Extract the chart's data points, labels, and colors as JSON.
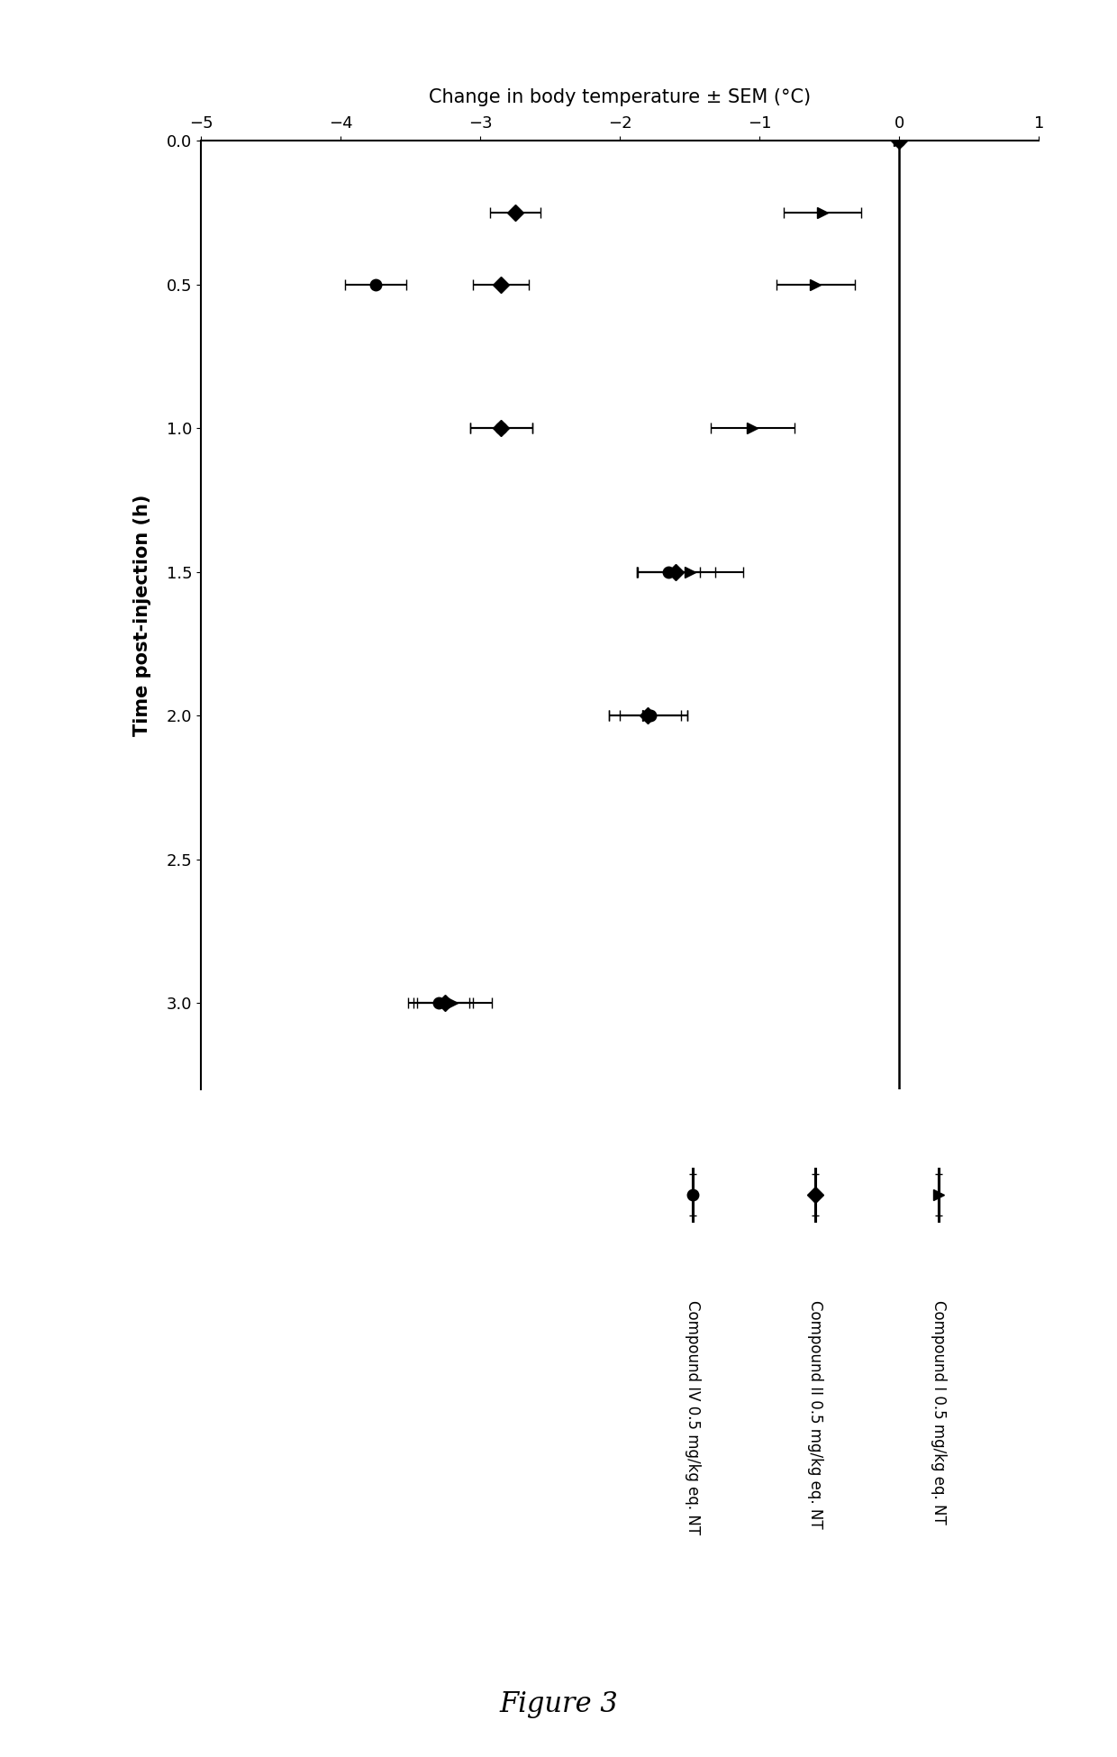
{
  "title": "Change in body temperature ± SEM (°C)",
  "ylabel": "Time post-injection (h)",
  "figure_label": "Figure 3",
  "xlim": [
    -5,
    1
  ],
  "ylim_top": 0,
  "ylim_bottom": 3.3,
  "xticks": [
    -5,
    -4,
    -3,
    -2,
    -1,
    0,
    1
  ],
  "yticks": [
    0,
    0.5,
    1.0,
    1.5,
    2.0,
    2.5,
    3.0
  ],
  "compound1": {
    "label": "Compound I 0.5 mg/kg eq. NT",
    "marker": ">",
    "time": [
      0,
      0.25,
      0.5,
      1.0,
      1.5,
      2.0,
      3.0
    ],
    "temp": [
      0,
      -0.55,
      -0.6,
      -1.05,
      -1.5,
      -1.8,
      -3.2
    ],
    "xerr": [
      0,
      0.28,
      0.28,
      0.3,
      0.38,
      0.28,
      0.28
    ]
  },
  "compound2": {
    "label": "Compound II 0.5 mg/kg eq. NT",
    "marker": "D",
    "time": [
      0,
      0.25,
      0.5,
      1.0,
      1.5,
      2.0,
      3.0
    ],
    "temp": [
      0,
      -2.75,
      -2.85,
      -2.85,
      -1.6,
      -1.8,
      -3.25
    ],
    "xerr": [
      0,
      0.18,
      0.2,
      0.22,
      0.28,
      0.28,
      0.2
    ]
  },
  "compound4": {
    "label": "Compound IV 0.5 mg/kg eq. NT",
    "marker": "o",
    "time": [
      0,
      0.5,
      1.0,
      1.5,
      2.0,
      3.0
    ],
    "temp": [
      0,
      -3.75,
      -2.85,
      -1.65,
      -1.78,
      -3.3
    ],
    "xerr": [
      0,
      0.22,
      0.22,
      0.22,
      0.22,
      0.22
    ]
  },
  "line_color": "#000000",
  "marker_size": 9,
  "linewidth": 2.2,
  "capsize": 4,
  "legend_labels": [
    "Compound IV 0.5 mg/kg eq. NT",
    "Compound II 0.5 mg/kg eq. NT",
    "Compound I 0.5 mg/kg eq. NT"
  ],
  "legend_markers": [
    "o",
    "D",
    ">"
  ]
}
